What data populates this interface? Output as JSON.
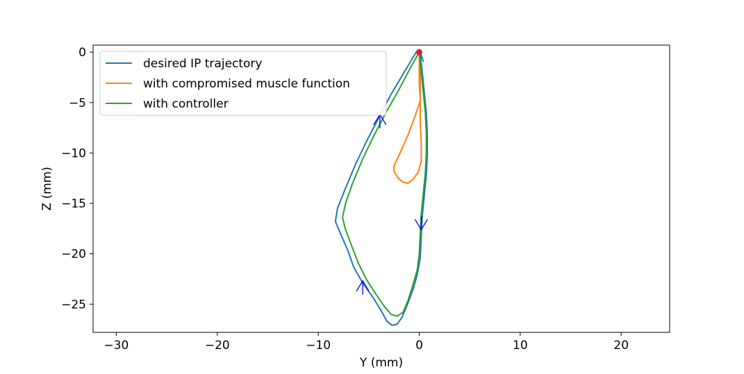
{
  "chart_data": {
    "type": "line",
    "xlabel": "Y (mm)",
    "ylabel": "Z (mm)",
    "xlim": [
      -32.3,
      24.8
    ],
    "ylim": [
      -27.8,
      0.7
    ],
    "xticks": [
      -30,
      -20,
      -10,
      0,
      10,
      20
    ],
    "xtick_labels": [
      "−30",
      "−20",
      "−10",
      "0",
      "10",
      "20"
    ],
    "yticks": [
      0,
      -5,
      -10,
      -15,
      -20,
      -25
    ],
    "ytick_labels": [
      "0",
      "−5",
      "−10",
      "−15",
      "−20",
      "−25"
    ],
    "grid": false,
    "legend_position": "top-left",
    "series": [
      {
        "name": "desired IP trajectory",
        "color": "#1f77b4",
        "points": [
          [
            0.4,
            -0.9
          ],
          [
            0.1,
            0.0
          ],
          [
            -0.3,
            0.0
          ],
          [
            -1.5,
            -2.0
          ],
          [
            -2.8,
            -4.2
          ],
          [
            -4.0,
            -6.5
          ],
          [
            -5.2,
            -8.8
          ],
          [
            -6.3,
            -11.1
          ],
          [
            -7.3,
            -13.5
          ],
          [
            -8.1,
            -15.5
          ],
          [
            -8.3,
            -16.8
          ],
          [
            -7.8,
            -18.0
          ],
          [
            -7.1,
            -19.6
          ],
          [
            -6.5,
            -21.3
          ],
          [
            -5.6,
            -22.9
          ],
          [
            -4.6,
            -24.3
          ],
          [
            -3.8,
            -25.6
          ],
          [
            -3.2,
            -26.7
          ],
          [
            -2.7,
            -27.1
          ],
          [
            -2.2,
            -27.0
          ],
          [
            -1.7,
            -26.3
          ],
          [
            -1.2,
            -25.1
          ],
          [
            -0.6,
            -23.5
          ],
          [
            -0.2,
            -22.1
          ],
          [
            0.1,
            -20.4
          ],
          [
            0.2,
            -18.3
          ],
          [
            0.3,
            -16.3
          ],
          [
            0.5,
            -14.2
          ],
          [
            0.7,
            -12.2
          ],
          [
            0.8,
            -10.2
          ],
          [
            0.8,
            -8.2
          ],
          [
            0.7,
            -6.0
          ],
          [
            0.5,
            -4.0
          ],
          [
            0.3,
            -2.0
          ],
          [
            0.1,
            -0.2
          ]
        ]
      },
      {
        "name": "with compromised muscle function",
        "color": "#ff7f0e",
        "points": [
          [
            0.0,
            0.0
          ],
          [
            0.1,
            -1.5
          ],
          [
            0.1,
            -3.0
          ],
          [
            0.1,
            -4.8
          ],
          [
            -0.4,
            -6.3
          ],
          [
            -1.1,
            -8.2
          ],
          [
            -1.9,
            -10.0
          ],
          [
            -2.5,
            -11.3
          ],
          [
            -2.5,
            -11.8
          ],
          [
            -2.1,
            -12.5
          ],
          [
            -1.6,
            -12.9
          ],
          [
            -1.1,
            -13.0
          ],
          [
            -0.6,
            -12.6
          ],
          [
            -0.1,
            -11.9
          ],
          [
            0.2,
            -10.8
          ],
          [
            0.2,
            -9.0
          ],
          [
            0.1,
            -7.0
          ],
          [
            0.1,
            -5.0
          ],
          [
            0.0,
            -3.0
          ],
          [
            0.0,
            -1.0
          ],
          [
            0.0,
            0.0
          ]
        ]
      },
      {
        "name": "with controller",
        "color": "#2ca02c",
        "points": [
          [
            0.0,
            0.0
          ],
          [
            -0.9,
            -1.6
          ],
          [
            -2.0,
            -3.7
          ],
          [
            -3.3,
            -6.0
          ],
          [
            -4.5,
            -8.3
          ],
          [
            -5.6,
            -10.6
          ],
          [
            -6.6,
            -13.0
          ],
          [
            -7.3,
            -15.0
          ],
          [
            -7.6,
            -16.4
          ],
          [
            -7.3,
            -17.6
          ],
          [
            -6.7,
            -19.2
          ],
          [
            -6.0,
            -21.0
          ],
          [
            -5.2,
            -22.6
          ],
          [
            -4.3,
            -24.0
          ],
          [
            -3.4,
            -25.3
          ],
          [
            -2.8,
            -26.0
          ],
          [
            -2.2,
            -26.2
          ],
          [
            -1.6,
            -25.8
          ],
          [
            -1.1,
            -24.6
          ],
          [
            -0.6,
            -23.0
          ],
          [
            -0.2,
            -21.6
          ],
          [
            0.0,
            -20.0
          ],
          [
            0.1,
            -18.0
          ],
          [
            0.2,
            -16.0
          ],
          [
            0.4,
            -14.0
          ],
          [
            0.6,
            -12.0
          ],
          [
            0.7,
            -10.0
          ],
          [
            0.7,
            -8.0
          ],
          [
            0.6,
            -6.0
          ],
          [
            0.4,
            -4.0
          ],
          [
            0.2,
            -2.0
          ],
          [
            0.0,
            0.0
          ]
        ]
      }
    ],
    "markers": [
      {
        "type": "arrow",
        "direction": "up",
        "color": "#0000ff",
        "x": -3.9,
        "y": -6.8
      },
      {
        "type": "arrow",
        "direction": "down",
        "color": "#0000ff",
        "x": 0.2,
        "y": -17.0
      },
      {
        "type": "arrow",
        "direction": "up",
        "color": "#0000ff",
        "x": -5.6,
        "y": -23.3
      },
      {
        "type": "point",
        "color": "#d62728",
        "x": 0.0,
        "y": 0.0
      }
    ]
  }
}
